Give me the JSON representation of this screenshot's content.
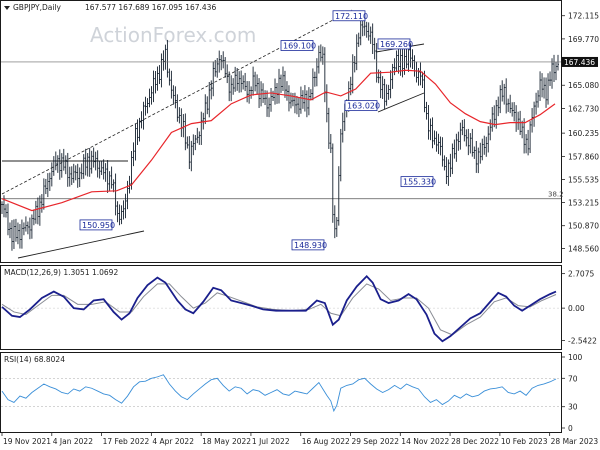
{
  "watermark": "ActionForex.com",
  "header": {
    "symbol": "GBPJPY,Daily",
    "ohlc": "167.577 167.689 167.095 167.436"
  },
  "chart_data": [
    {
      "type": "candlestick",
      "title": "GBPJPY,Daily",
      "x_labels": [
        "19 Nov 2021",
        "4 Jan 2022",
        "17 Feb 2022",
        "4 Apr 2022",
        "18 May 2022",
        "1 Jul 2022",
        "16 Aug 2022",
        "29 Sep 2022",
        "14 Nov 2022",
        "28 Dec 2022",
        "10 Feb 2023",
        "28 Mar 2023"
      ],
      "y_ticks": [
        148.56,
        150.87,
        153.215,
        155.535,
        157.86,
        160.235,
        162.73,
        165.08,
        167.436,
        169.77,
        172.115
      ],
      "ylim": [
        147.4,
        173.3
      ],
      "current_price": 167.436,
      "close_path": [
        [
          0,
          153.0
        ],
        [
          10,
          149.8
        ],
        [
          20,
          150.3
        ],
        [
          30,
          151.2
        ],
        [
          40,
          153.5
        ],
        [
          48,
          156.0
        ],
        [
          55,
          157.5
        ],
        [
          62,
          157.0
        ],
        [
          70,
          155.8
        ],
        [
          78,
          156.2
        ],
        [
          86,
          157.5
        ],
        [
          94,
          157.3
        ],
        [
          102,
          156.2
        ],
        [
          110,
          155.5
        ],
        [
          116,
          152.0
        ],
        [
          122,
          152.2
        ],
        [
          128,
          155.8
        ],
        [
          134,
          160.0
        ],
        [
          140,
          161.8
        ],
        [
          146,
          163.5
        ],
        [
          152,
          165.0
        ],
        [
          158,
          166.5
        ],
        [
          164,
          168.2
        ],
        [
          170,
          164.5
        ],
        [
          176,
          162.5
        ],
        [
          182,
          160.5
        ],
        [
          188,
          158.0
        ],
        [
          194,
          159.5
        ],
        [
          200,
          161.0
        ],
        [
          206,
          163.5
        ],
        [
          212,
          166.0
        ],
        [
          218,
          168.0
        ],
        [
          224,
          166.5
        ],
        [
          230,
          164.5
        ],
        [
          236,
          166.0
        ],
        [
          242,
          165.0
        ],
        [
          248,
          164.5
        ],
        [
          254,
          165.5
        ],
        [
          260,
          164.0
        ],
        [
          266,
          163.2
        ],
        [
          272,
          163.8
        ],
        [
          278,
          165.5
        ],
        [
          284,
          165.0
        ],
        [
          290,
          163.2
        ],
        [
          296,
          163.2
        ],
        [
          302,
          163.5
        ],
        [
          308,
          163.7
        ],
        [
          314,
          166.0
        ],
        [
          318,
          168.5
        ],
        [
          322,
          167.5
        ],
        [
          326,
          162.0
        ],
        [
          330,
          158.0
        ],
        [
          333,
          149.2
        ],
        [
          336,
          152.0
        ],
        [
          340,
          160.0
        ],
        [
          346,
          163.5
        ],
        [
          352,
          166.5
        ],
        [
          358,
          170.5
        ],
        [
          364,
          171.0
        ],
        [
          368,
          170.5
        ],
        [
          372,
          169.3
        ],
        [
          378,
          165.5
        ],
        [
          384,
          163.8
        ],
        [
          390,
          165.5
        ],
        [
          396,
          168.0
        ],
        [
          402,
          167.0
        ],
        [
          408,
          168.5
        ],
        [
          414,
          166.5
        ],
        [
          420,
          166.2
        ],
        [
          426,
          162.0
        ],
        [
          432,
          159.5
        ],
        [
          438,
          159.5
        ],
        [
          444,
          156.5
        ],
        [
          450,
          157.0
        ],
        [
          456,
          159.5
        ],
        [
          462,
          160.5
        ],
        [
          468,
          159.5
        ],
        [
          474,
          158.0
        ],
        [
          480,
          158.0
        ],
        [
          486,
          159.5
        ],
        [
          492,
          161.5
        ],
        [
          498,
          163.5
        ],
        [
          504,
          164.5
        ],
        [
          510,
          162.5
        ],
        [
          516,
          162.0
        ],
        [
          522,
          160.0
        ],
        [
          528,
          159.2
        ],
        [
          534,
          163.0
        ],
        [
          540,
          165.0
        ],
        [
          546,
          164.5
        ],
        [
          552,
          166.5
        ],
        [
          558,
          167.4
        ]
      ],
      "ema": [
        [
          0,
          153.6
        ],
        [
          30,
          152.4
        ],
        [
          60,
          153.2
        ],
        [
          90,
          154.3
        ],
        [
          115,
          154.4
        ],
        [
          130,
          155.0
        ],
        [
          150,
          157.5
        ],
        [
          170,
          160.3
        ],
        [
          190,
          161.2
        ],
        [
          210,
          161.5
        ],
        [
          230,
          163.2
        ],
        [
          250,
          164.1
        ],
        [
          270,
          164.3
        ],
        [
          290,
          164.0
        ],
        [
          310,
          163.6
        ],
        [
          325,
          164.4
        ],
        [
          340,
          164.0
        ],
        [
          355,
          164.7
        ],
        [
          370,
          166.3
        ],
        [
          390,
          166.4
        ],
        [
          405,
          166.6
        ],
        [
          420,
          166.5
        ],
        [
          435,
          165.2
        ],
        [
          450,
          163.3
        ],
        [
          465,
          162.2
        ],
        [
          480,
          161.4
        ],
        [
          495,
          161.1
        ],
        [
          510,
          161.3
        ],
        [
          525,
          161.3
        ],
        [
          540,
          162.1
        ],
        [
          555,
          163.2
        ]
      ],
      "annotations": [
        {
          "label": "150.950",
          "price": 150.95
        },
        {
          "label": "148.930",
          "price": 148.93
        },
        {
          "label": "169.100",
          "price": 169.1
        },
        {
          "label": "163.020",
          "price": 163.02
        },
        {
          "label": "172.110",
          "price": 172.11
        },
        {
          "label": "169.260",
          "price": 169.26
        },
        {
          "label": "155.330",
          "price": 155.33
        }
      ],
      "fib_label": "38.2",
      "fib_level": 153.6,
      "ema_color": "#e8262b"
    },
    {
      "type": "line",
      "title": "MACD(12,26,9) 1.3051 1.0692",
      "y_ticks_labels": [
        "2.7075",
        "0.00",
        "-2.5422"
      ],
      "ylim": [
        -3.05,
        3.15
      ],
      "macd": [
        [
          0,
          0.1
        ],
        [
          10,
          -0.6
        ],
        [
          18,
          -0.7
        ],
        [
          28,
          -0.1
        ],
        [
          40,
          0.8
        ],
        [
          52,
          1.3
        ],
        [
          62,
          0.9
        ],
        [
          72,
          0.0
        ],
        [
          82,
          -0.1
        ],
        [
          92,
          0.6
        ],
        [
          102,
          0.7
        ],
        [
          112,
          -0.3
        ],
        [
          120,
          -0.9
        ],
        [
          128,
          -0.4
        ],
        [
          136,
          0.8
        ],
        [
          146,
          1.8
        ],
        [
          156,
          2.4
        ],
        [
          164,
          2.0
        ],
        [
          176,
          0.6
        ],
        [
          184,
          -0.1
        ],
        [
          192,
          -0.4
        ],
        [
          202,
          0.5
        ],
        [
          212,
          1.6
        ],
        [
          220,
          1.4
        ],
        [
          230,
          0.6
        ],
        [
          240,
          0.4
        ],
        [
          250,
          0.2
        ],
        [
          262,
          -0.1
        ],
        [
          275,
          -0.2
        ],
        [
          290,
          -0.2
        ],
        [
          305,
          -0.2
        ],
        [
          316,
          0.6
        ],
        [
          324,
          0.4
        ],
        [
          332,
          -1.3
        ],
        [
          338,
          -0.9
        ],
        [
          346,
          0.6
        ],
        [
          356,
          1.7
        ],
        [
          366,
          2.5
        ],
        [
          372,
          2.0
        ],
        [
          380,
          0.7
        ],
        [
          388,
          0.4
        ],
        [
          398,
          0.6
        ],
        [
          408,
          1.1
        ],
        [
          416,
          0.7
        ],
        [
          426,
          -0.5
        ],
        [
          434,
          -2.0
        ],
        [
          442,
          -2.6
        ],
        [
          450,
          -2.2
        ],
        [
          460,
          -1.5
        ],
        [
          470,
          -0.8
        ],
        [
          480,
          -0.4
        ],
        [
          490,
          0.5
        ],
        [
          498,
          1.2
        ],
        [
          506,
          0.9
        ],
        [
          514,
          0.2
        ],
        [
          522,
          -0.2
        ],
        [
          530,
          0.2
        ],
        [
          540,
          0.7
        ],
        [
          550,
          1.1
        ],
        [
          556,
          1.3
        ]
      ],
      "signal": [
        [
          0,
          0.3
        ],
        [
          12,
          -0.3
        ],
        [
          24,
          -0.5
        ],
        [
          36,
          0.2
        ],
        [
          50,
          1.0
        ],
        [
          62,
          1.0
        ],
        [
          76,
          0.3
        ],
        [
          90,
          0.3
        ],
        [
          104,
          0.5
        ],
        [
          118,
          -0.3
        ],
        [
          130,
          -0.3
        ],
        [
          142,
          0.9
        ],
        [
          156,
          1.9
        ],
        [
          168,
          1.9
        ],
        [
          180,
          0.9
        ],
        [
          192,
          0.0
        ],
        [
          204,
          0.4
        ],
        [
          216,
          1.2
        ],
        [
          228,
          0.9
        ],
        [
          242,
          0.5
        ],
        [
          256,
          0.1
        ],
        [
          272,
          -0.1
        ],
        [
          290,
          -0.2
        ],
        [
          308,
          -0.1
        ],
        [
          320,
          0.3
        ],
        [
          330,
          -0.4
        ],
        [
          340,
          -0.6
        ],
        [
          352,
          0.8
        ],
        [
          366,
          1.9
        ],
        [
          378,
          1.5
        ],
        [
          390,
          0.6
        ],
        [
          404,
          0.8
        ],
        [
          416,
          0.8
        ],
        [
          428,
          0.0
        ],
        [
          440,
          -1.7
        ],
        [
          452,
          -2.1
        ],
        [
          466,
          -1.3
        ],
        [
          480,
          -0.7
        ],
        [
          494,
          0.5
        ],
        [
          506,
          0.8
        ],
        [
          518,
          0.2
        ],
        [
          530,
          0.1
        ],
        [
          542,
          0.6
        ],
        [
          556,
          1.07
        ]
      ],
      "macd_color": "#1a1f8c",
      "signal_color": "#8a8d95"
    },
    {
      "type": "line",
      "title": "RSI(14) 68.8024",
      "y_ticks_labels": [
        "100",
        "70",
        "30",
        "0"
      ],
      "ylim": [
        0,
        100
      ],
      "rsi": [
        [
          0,
          52
        ],
        [
          6,
          40
        ],
        [
          12,
          36
        ],
        [
          18,
          45
        ],
        [
          24,
          42
        ],
        [
          30,
          50
        ],
        [
          36,
          56
        ],
        [
          42,
          62
        ],
        [
          48,
          58
        ],
        [
          54,
          55
        ],
        [
          60,
          50
        ],
        [
          66,
          48
        ],
        [
          72,
          55
        ],
        [
          78,
          52
        ],
        [
          84,
          58
        ],
        [
          90,
          56
        ],
        [
          96,
          52
        ],
        [
          102,
          48
        ],
        [
          108,
          46
        ],
        [
          114,
          40
        ],
        [
          120,
          35
        ],
        [
          126,
          45
        ],
        [
          132,
          58
        ],
        [
          138,
          65
        ],
        [
          144,
          66
        ],
        [
          150,
          70
        ],
        [
          156,
          72
        ],
        [
          162,
          75
        ],
        [
          168,
          62
        ],
        [
          174,
          52
        ],
        [
          180,
          44
        ],
        [
          186,
          40
        ],
        [
          192,
          48
        ],
        [
          198,
          55
        ],
        [
          204,
          62
        ],
        [
          210,
          68
        ],
        [
          216,
          70
        ],
        [
          222,
          60
        ],
        [
          228,
          52
        ],
        [
          234,
          58
        ],
        [
          240,
          56
        ],
        [
          246,
          48
        ],
        [
          252,
          54
        ],
        [
          258,
          52
        ],
        [
          264,
          46
        ],
        [
          270,
          50
        ],
        [
          276,
          54
        ],
        [
          282,
          48
        ],
        [
          288,
          46
        ],
        [
          294,
          52
        ],
        [
          300,
          50
        ],
        [
          306,
          48
        ],
        [
          312,
          56
        ],
        [
          318,
          64
        ],
        [
          322,
          55
        ],
        [
          326,
          46
        ],
        [
          330,
          38
        ],
        [
          333,
          24
        ],
        [
          336,
          32
        ],
        [
          340,
          56
        ],
        [
          346,
          60
        ],
        [
          352,
          62
        ],
        [
          358,
          68
        ],
        [
          364,
          70
        ],
        [
          370,
          62
        ],
        [
          376,
          55
        ],
        [
          382,
          50
        ],
        [
          388,
          54
        ],
        [
          394,
          60
        ],
        [
          400,
          55
        ],
        [
          406,
          62
        ],
        [
          412,
          58
        ],
        [
          418,
          55
        ],
        [
          424,
          44
        ],
        [
          430,
          36
        ],
        [
          436,
          40
        ],
        [
          442,
          33
        ],
        [
          448,
          38
        ],
        [
          454,
          46
        ],
        [
          460,
          42
        ],
        [
          466,
          48
        ],
        [
          472,
          44
        ],
        [
          478,
          46
        ],
        [
          484,
          52
        ],
        [
          490,
          55
        ],
        [
          496,
          56
        ],
        [
          502,
          58
        ],
        [
          508,
          50
        ],
        [
          514,
          48
        ],
        [
          520,
          52
        ],
        [
          526,
          46
        ],
        [
          532,
          56
        ],
        [
          538,
          60
        ],
        [
          544,
          62
        ],
        [
          550,
          65
        ],
        [
          556,
          69
        ]
      ],
      "rsi_color": "#3a8fd8"
    }
  ]
}
